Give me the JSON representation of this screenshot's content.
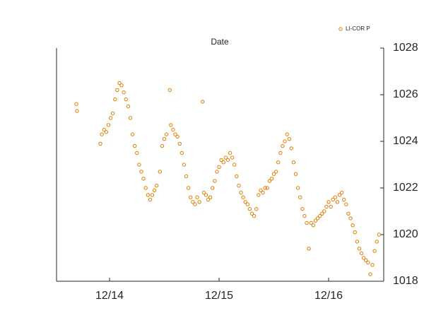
{
  "chart_data": {
    "type": "scatter",
    "title": "Date",
    "series": [
      {
        "name": "LI-COR P",
        "color": "#e07b00",
        "x": [
          13.697,
          13.703,
          13.916,
          13.93,
          13.95,
          13.97,
          13.99,
          14.01,
          14.03,
          14.05,
          14.07,
          14.09,
          14.11,
          14.13,
          14.15,
          14.17,
          14.19,
          14.21,
          14.23,
          14.25,
          14.27,
          14.29,
          14.31,
          14.33,
          14.35,
          14.37,
          14.39,
          14.41,
          14.43,
          14.46,
          14.48,
          14.5,
          14.52,
          14.55,
          14.56,
          14.58,
          14.6,
          14.62,
          14.64,
          14.66,
          14.68,
          14.7,
          14.72,
          14.74,
          14.76,
          14.78,
          14.8,
          14.82,
          14.85,
          14.86,
          14.88,
          14.9,
          14.92,
          14.94,
          14.96,
          14.98,
          15.0,
          15.02,
          15.04,
          15.06,
          15.08,
          15.1,
          15.12,
          15.14,
          15.16,
          15.18,
          15.2,
          15.22,
          15.24,
          15.26,
          15.28,
          15.3,
          15.32,
          15.34,
          15.36,
          15.38,
          15.4,
          15.42,
          15.44,
          15.46,
          15.48,
          15.5,
          15.52,
          15.54,
          15.56,
          15.58,
          15.6,
          15.62,
          15.64,
          15.66,
          15.68,
          15.7,
          15.72,
          15.74,
          15.76,
          15.78,
          15.8,
          15.82,
          15.84,
          15.86,
          15.88,
          15.9,
          15.92,
          15.94,
          15.96,
          15.98,
          16.0,
          16.02,
          16.04,
          16.06,
          16.08,
          16.1,
          16.12,
          16.14,
          16.16,
          16.18,
          16.2,
          16.22,
          16.24,
          16.26,
          16.28,
          16.3,
          16.32,
          16.34,
          16.36,
          16.38,
          16.4,
          16.42,
          16.44,
          16.46
        ],
        "values": [
          1025.6,
          1025.3,
          1023.9,
          1024.3,
          1024.5,
          1024.4,
          1024.7,
          1025.0,
          1025.2,
          1025.8,
          1026.2,
          1026.5,
          1026.4,
          1026.1,
          1025.8,
          1025.5,
          1025.0,
          1024.3,
          1023.8,
          1023.5,
          1023.0,
          1022.7,
          1022.4,
          1022.0,
          1021.7,
          1021.5,
          1021.7,
          1021.9,
          1022.1,
          1022.7,
          1023.8,
          1024.1,
          1024.3,
          1026.2,
          1024.7,
          1024.5,
          1024.3,
          1024.2,
          1023.9,
          1023.5,
          1023.0,
          1022.5,
          1022.0,
          1021.6,
          1021.4,
          1021.3,
          1021.6,
          1021.4,
          1025.7,
          1021.8,
          1021.7,
          1021.5,
          1021.6,
          1022.0,
          1022.3,
          1022.7,
          1022.9,
          1023.2,
          1023.1,
          1023.3,
          1023.2,
          1023.5,
          1023.3,
          1023.0,
          1022.5,
          1022.1,
          1021.8,
          1021.6,
          1021.4,
          1021.3,
          1021.1,
          1020.9,
          1020.8,
          1021.1,
          1021.7,
          1021.9,
          1021.8,
          1022.0,
          1022.0,
          1022.3,
          1022.4,
          1022.6,
          1022.7,
          1023.1,
          1023.5,
          1023.8,
          1024.0,
          1024.3,
          1024.1,
          1023.7,
          1023.1,
          1022.6,
          1022.0,
          1021.6,
          1021.1,
          1020.8,
          1020.5,
          1019.4,
          1020.5,
          1020.4,
          1020.6,
          1020.7,
          1020.8,
          1020.9,
          1021.0,
          1021.2,
          1021.4,
          1021.2,
          1021.5,
          1021.6,
          1021.4,
          1021.7,
          1021.8,
          1021.5,
          1021.3,
          1020.9,
          1020.7,
          1020.4,
          1020.1,
          1019.7,
          1019.4,
          1019.2,
          1019.0,
          1018.9,
          1018.8,
          1018.3,
          1018.7,
          1019.3,
          1019.7,
          1020.0
        ]
      }
    ],
    "xlim": [
      13.516,
      16.503
    ],
    "xticks": [
      {
        "value": 14,
        "label": "12/14"
      },
      {
        "value": 15,
        "label": "12/15"
      },
      {
        "value": 16,
        "label": "12/16"
      }
    ],
    "ylim": [
      1018,
      1028
    ],
    "yticks": [
      1018,
      1020,
      1022,
      1024,
      1026,
      1028
    ],
    "legend": "top-right"
  }
}
